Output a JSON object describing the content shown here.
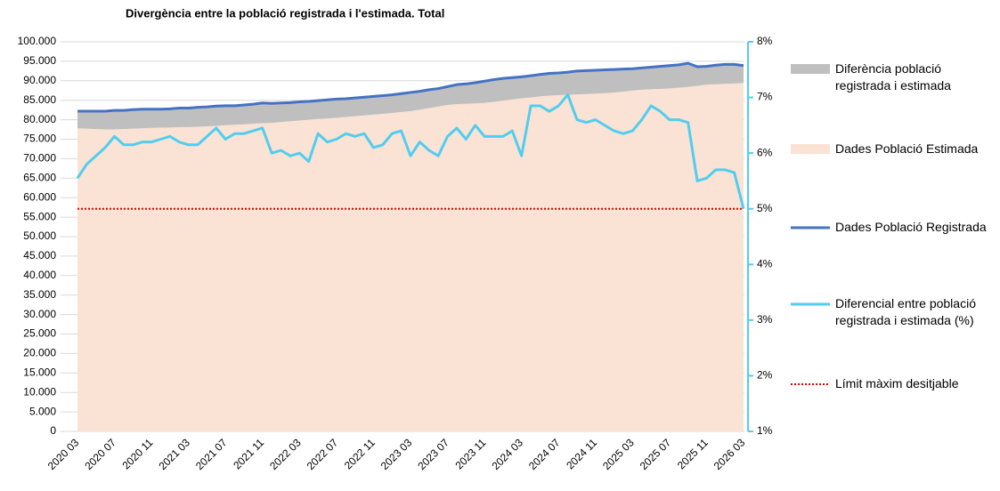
{
  "chart_data": {
    "type": "combo",
    "title": "Divergència entre la població registrada i l'estimada. Total",
    "categories": [
      "2020 03",
      null,
      null,
      null,
      "2020 07",
      null,
      null,
      null,
      "2020 11",
      null,
      null,
      null,
      "2021 03",
      null,
      null,
      null,
      "2021 07",
      null,
      null,
      null,
      "2021 11",
      null,
      null,
      null,
      "2022 03",
      null,
      null,
      null,
      "2022 07",
      null,
      null,
      null,
      "2022 11",
      null,
      null,
      null,
      "2023 03",
      null,
      null,
      null,
      "2023 07",
      null,
      null,
      null,
      "2023 11",
      null,
      null,
      null,
      "2024 03",
      null,
      null,
      null,
      "2024 07",
      null,
      null,
      null,
      "2024 11",
      null,
      null,
      null,
      "2025 03",
      null,
      null,
      null,
      "2025 07",
      null,
      null,
      null,
      "2025 11",
      null,
      null,
      null,
      "2026 03"
    ],
    "series": [
      {
        "name": "Diferència població registrada i estimada",
        "kind": "stacked-area",
        "stack_on": 1,
        "color": "#bfbfbf",
        "values": [
          4400,
          4500,
          4600,
          4700,
          4900,
          4800,
          4900,
          4900,
          4800,
          4700,
          4800,
          4900,
          4900,
          5000,
          5000,
          5100,
          5000,
          4900,
          5000,
          5000,
          5200,
          5000,
          4900,
          4800,
          4800,
          4700,
          4700,
          4800,
          4800,
          4700,
          4700,
          4700,
          4700,
          4700,
          4700,
          4700,
          4800,
          4700,
          4700,
          4600,
          4700,
          5000,
          5100,
          5300,
          5600,
          5700,
          5700,
          5600,
          5500,
          5600,
          5600,
          5700,
          5700,
          5800,
          6000,
          6000,
          6000,
          6000,
          5900,
          5800,
          5600,
          5600,
          5700,
          5800,
          5900,
          5900,
          6100,
          4900,
          4700,
          4900,
          5000,
          4900,
          4500
        ]
      },
      {
        "name": "Dades Població Estimada",
        "kind": "area",
        "color": "#fae3d4",
        "values": [
          77800,
          77700,
          77600,
          77500,
          77500,
          77600,
          77700,
          77800,
          77900,
          78000,
          78000,
          78100,
          78100,
          78200,
          78300,
          78400,
          78600,
          78700,
          78800,
          79000,
          79100,
          79200,
          79400,
          79600,
          79800,
          80000,
          80200,
          80300,
          80500,
          80700,
          80900,
          81100,
          81300,
          81500,
          81700,
          82000,
          82200,
          82600,
          83000,
          83400,
          83800,
          84000,
          84100,
          84200,
          84300,
          84600,
          84900,
          85200,
          85500,
          85700,
          86000,
          86200,
          86300,
          86400,
          86500,
          86600,
          86700,
          86800,
          87000,
          87200,
          87500,
          87700,
          87800,
          87900,
          88000,
          88200,
          88400,
          88700,
          89000,
          89100,
          89200,
          89300,
          89400
        ]
      },
      {
        "name": "Dades Població Registrada",
        "kind": "line",
        "color": "#4472c4",
        "values": [
          82200,
          82200,
          82200,
          82200,
          82400,
          82400,
          82600,
          82700,
          82700,
          82700,
          82800,
          83000,
          83000,
          83200,
          83300,
          83500,
          83600,
          83600,
          83800,
          84000,
          84300,
          84200,
          84300,
          84400,
          84600,
          84700,
          84900,
          85100,
          85300,
          85400,
          85600,
          85800,
          86000,
          86200,
          86400,
          86700,
          87000,
          87300,
          87700,
          88000,
          88500,
          89000,
          89200,
          89500,
          89900,
          90300,
          90600,
          90800,
          91000,
          91300,
          91600,
          91900,
          92000,
          92200,
          92500,
          92600,
          92700,
          92800,
          92900,
          93000,
          93100,
          93300,
          93500,
          93700,
          93900,
          94100,
          94500,
          93600,
          93700,
          94000,
          94200,
          94200,
          93900
        ]
      },
      {
        "name": "Diferencial entre població registrada i estimada (%)",
        "kind": "line",
        "axis": "y2",
        "color": "#52cdef",
        "values": [
          5.55,
          5.8,
          5.95,
          6.1,
          6.3,
          6.15,
          6.15,
          6.2,
          6.2,
          6.25,
          6.3,
          6.2,
          6.15,
          6.15,
          6.3,
          6.45,
          6.25,
          6.35,
          6.35,
          6.4,
          6.45,
          6.0,
          6.05,
          5.95,
          6.0,
          5.85,
          6.35,
          6.2,
          6.25,
          6.35,
          6.3,
          6.35,
          6.1,
          6.15,
          6.35,
          6.4,
          5.95,
          6.2,
          6.05,
          5.95,
          6.3,
          6.45,
          6.25,
          6.5,
          6.3,
          6.3,
          6.3,
          6.4,
          5.95,
          6.85,
          6.85,
          6.75,
          6.85,
          7.05,
          6.6,
          6.55,
          6.6,
          6.5,
          6.4,
          6.35,
          6.4,
          6.6,
          6.85,
          6.75,
          6.6,
          6.6,
          6.55,
          5.5,
          5.55,
          5.7,
          5.7,
          5.65,
          5.0
        ]
      },
      {
        "name": "Límit màxim desitjable",
        "kind": "reference-line",
        "axis": "y2",
        "color": "#e00000",
        "value": 5
      }
    ],
    "ylim": [
      0,
      100000
    ],
    "yticks": [
      0,
      {
        "value": 5000,
        "label": "5.000"
      },
      {
        "value": 10000,
        "label": "10.000"
      },
      {
        "value": 15000,
        "label": "15.000"
      },
      {
        "value": 20000,
        "label": "20.000"
      },
      {
        "value": 25000,
        "label": "25.000"
      },
      {
        "value": 30000,
        "label": "30.000"
      },
      {
        "value": 35000,
        "label": "35.000"
      },
      {
        "value": 40000,
        "label": "40.000"
      },
      {
        "value": 45000,
        "label": "45.000"
      },
      {
        "value": 50000,
        "label": "50.000"
      },
      {
        "value": 55000,
        "label": "55.000"
      },
      {
        "value": 60000,
        "label": "60.000"
      },
      {
        "value": 65000,
        "label": "65.000"
      },
      {
        "value": 70000,
        "label": "70.000"
      },
      {
        "value": 75000,
        "label": "75.000"
      },
      {
        "value": 80000,
        "label": "80.000"
      },
      {
        "value": 85000,
        "label": "85.000"
      },
      {
        "value": 90000,
        "label": "90.000"
      },
      {
        "value": 95000,
        "label": "95.000"
      },
      {
        "value": 100000,
        "label": "100.000"
      }
    ],
    "y2lim": [
      1,
      8
    ],
    "y2ticks": [
      {
        "value": 1,
        "label": "1%"
      },
      {
        "value": 2,
        "label": "2%"
      },
      {
        "value": 3,
        "label": "3%"
      },
      {
        "value": 4,
        "label": "4%"
      },
      {
        "value": 5,
        "label": "5%"
      },
      {
        "value": 6,
        "label": "6%"
      },
      {
        "value": 7,
        "label": "7%"
      },
      {
        "value": 8,
        "label": "8%"
      }
    ],
    "grid": true,
    "legend": "right"
  }
}
